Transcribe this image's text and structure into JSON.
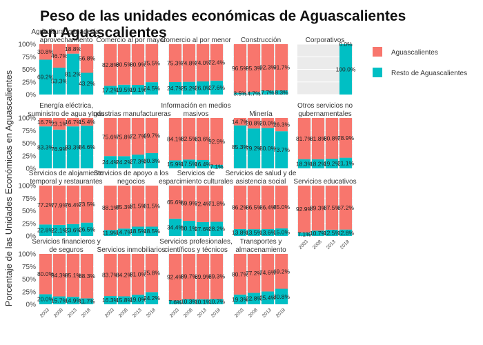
{
  "chart_data": {
    "type": "bar",
    "title": "Peso de las unidades económicas de Aguascalientes en Aguascalientes",
    "ylabel": "Porcentaje de las Unidades Económicas en Aguascalientes",
    "xlabel": "",
    "y_ticks": [
      "0%",
      "25%",
      "50%",
      "75%",
      "100%"
    ],
    "ylim": [
      0,
      100
    ],
    "grid": true,
    "legend_position": "right",
    "series_names": [
      "Aguascalientes",
      "Resto de Aguascalientes"
    ],
    "colors": {
      "Aguascalientes": "#f8766d",
      "Resto de Aguascalientes": "#00bfc4"
    },
    "facets": [
      {
        "title": "Agricultura, ganadería, aprovechamiento forestal, pesca y caza",
        "years": [
          "2003",
          "2008",
          "2013",
          "2018"
        ],
        "aguascalientes": [
          30.8,
          46.7,
          18.8,
          56.8
        ],
        "resto": [
          69.2,
          53.3,
          81.2,
          43.2
        ]
      },
      {
        "title": "Comercio al por mayor",
        "years": [
          "2003",
          "2008",
          "2013",
          "2018"
        ],
        "aguascalientes": [
          82.8,
          80.5,
          80.9,
          75.5
        ],
        "resto": [
          17.2,
          19.5,
          19.1,
          24.5
        ]
      },
      {
        "title": "Comercio al por menor",
        "years": [
          "2003",
          "2008",
          "2013",
          "2018"
        ],
        "aguascalientes": [
          75.3,
          74.8,
          74.0,
          72.4
        ],
        "resto": [
          24.7,
          25.2,
          26.0,
          27.6
        ]
      },
      {
        "title": "Construcción",
        "years": [
          "2003",
          "2008",
          "2013",
          "2018"
        ],
        "aguascalientes": [
          96.5,
          95.3,
          92.3,
          91.7
        ],
        "resto": [
          3.5,
          4.7,
          7.7,
          8.3
        ]
      },
      {
        "title": "Corporativos",
        "years": [
          "2003",
          "2008",
          "2013",
          "2018"
        ],
        "aguascalientes": [
          null,
          null,
          null,
          0.0
        ],
        "resto": [
          null,
          null,
          null,
          100.0
        ]
      },
      {
        "title": "Energía eléctrica, suministro de agua y gas natural",
        "years": [
          "2003",
          "2008",
          "2013",
          "2018"
        ],
        "aguascalientes": [
          16.7,
          23.1,
          16.7,
          15.4
        ],
        "resto": [
          83.3,
          76.9,
          83.3,
          84.6
        ]
      },
      {
        "title": "Industrias manufactureras",
        "years": [
          "2003",
          "2008",
          "2013",
          "2018"
        ],
        "aguascalientes": [
          75.6,
          75.8,
          72.7,
          69.7
        ],
        "resto": [
          24.4,
          24.2,
          27.3,
          30.3
        ]
      },
      {
        "title": "Información en medios masivos",
        "years": [
          "2003",
          "2008",
          "2013",
          "2018"
        ],
        "aguascalientes": [
          84.1,
          82.5,
          83.6,
          92.9
        ],
        "resto": [
          15.9,
          17.5,
          16.4,
          7.1
        ]
      },
      {
        "title": "Minería",
        "years": [
          "2003",
          "2008",
          "2013",
          "2018"
        ],
        "aguascalientes": [
          14.7,
          20.8,
          20.0,
          26.3
        ],
        "resto": [
          85.3,
          79.2,
          80.0,
          73.7
        ]
      },
      {
        "title": "Otros servicios no gubernamentales",
        "years": [
          "2003",
          "2008",
          "2013",
          "2018"
        ],
        "aguascalientes": [
          81.7,
          81.8,
          80.8,
          78.9
        ],
        "resto": [
          18.3,
          18.2,
          19.2,
          21.1
        ]
      },
      {
        "title": "Servicios de alojamiento temporal y restaurantes",
        "years": [
          "2003",
          "2008",
          "2013",
          "2018"
        ],
        "aguascalientes": [
          77.2,
          77.9,
          76.4,
          73.5
        ],
        "resto": [
          22.8,
          22.1,
          23.6,
          26.5
        ]
      },
      {
        "title": "Servicios de apoyo a los negocios",
        "years": [
          "2003",
          "2008",
          "2013",
          "2018"
        ],
        "aguascalientes": [
          88.1,
          85.3,
          81.5,
          81.5
        ],
        "resto": [
          11.9,
          14.7,
          18.5,
          18.5
        ]
      },
      {
        "title": "Servicios de esparcimiento culturales y deportivos",
        "years": [
          "2003",
          "2008",
          "2013",
          "2018"
        ],
        "aguascalientes": [
          65.6,
          69.9,
          72.4,
          71.8
        ],
        "resto": [
          34.4,
          30.1,
          27.6,
          28.2
        ]
      },
      {
        "title": "Servicios de salud y de asistencia social",
        "years": [
          "2003",
          "2008",
          "2013",
          "2018"
        ],
        "aguascalientes": [
          86.2,
          86.5,
          86.4,
          85.0
        ],
        "resto": [
          13.8,
          13.5,
          13.6,
          15.0
        ]
      },
      {
        "title": "Servicios educativos",
        "years": [
          "2003",
          "2008",
          "2013",
          "2018"
        ],
        "aguascalientes": [
          92.9,
          89.3,
          87.5,
          87.2
        ],
        "resto": [
          7.1,
          10.7,
          12.5,
          12.8
        ]
      },
      {
        "title": "Servicios financieros y de seguros",
        "years": [
          "2003",
          "2008",
          "2013",
          "2018"
        ],
        "aguascalientes": [
          80.0,
          84.3,
          85.1,
          88.3
        ],
        "resto": [
          20.0,
          15.7,
          14.9,
          11.7
        ]
      },
      {
        "title": "Servicios inmobiliarios",
        "years": [
          "2003",
          "2008",
          "2013",
          "2018"
        ],
        "aguascalientes": [
          83.7,
          84.2,
          81.0,
          75.8
        ],
        "resto": [
          16.3,
          15.8,
          19.0,
          24.2
        ]
      },
      {
        "title": "Servicios profesionales, científicos y técnicos",
        "years": [
          "2003",
          "2008",
          "2013",
          "2018"
        ],
        "aguascalientes": [
          92.4,
          89.7,
          89.9,
          89.3
        ],
        "resto": [
          7.6,
          10.3,
          10.1,
          10.7
        ]
      },
      {
        "title": "Transportes y almacenamiento",
        "years": [
          "2003",
          "2008",
          "2013",
          "2018"
        ],
        "aguascalientes": [
          80.7,
          77.2,
          74.6,
          69.2
        ],
        "resto": [
          19.3,
          22.8,
          25.4,
          30.8
        ]
      }
    ]
  }
}
